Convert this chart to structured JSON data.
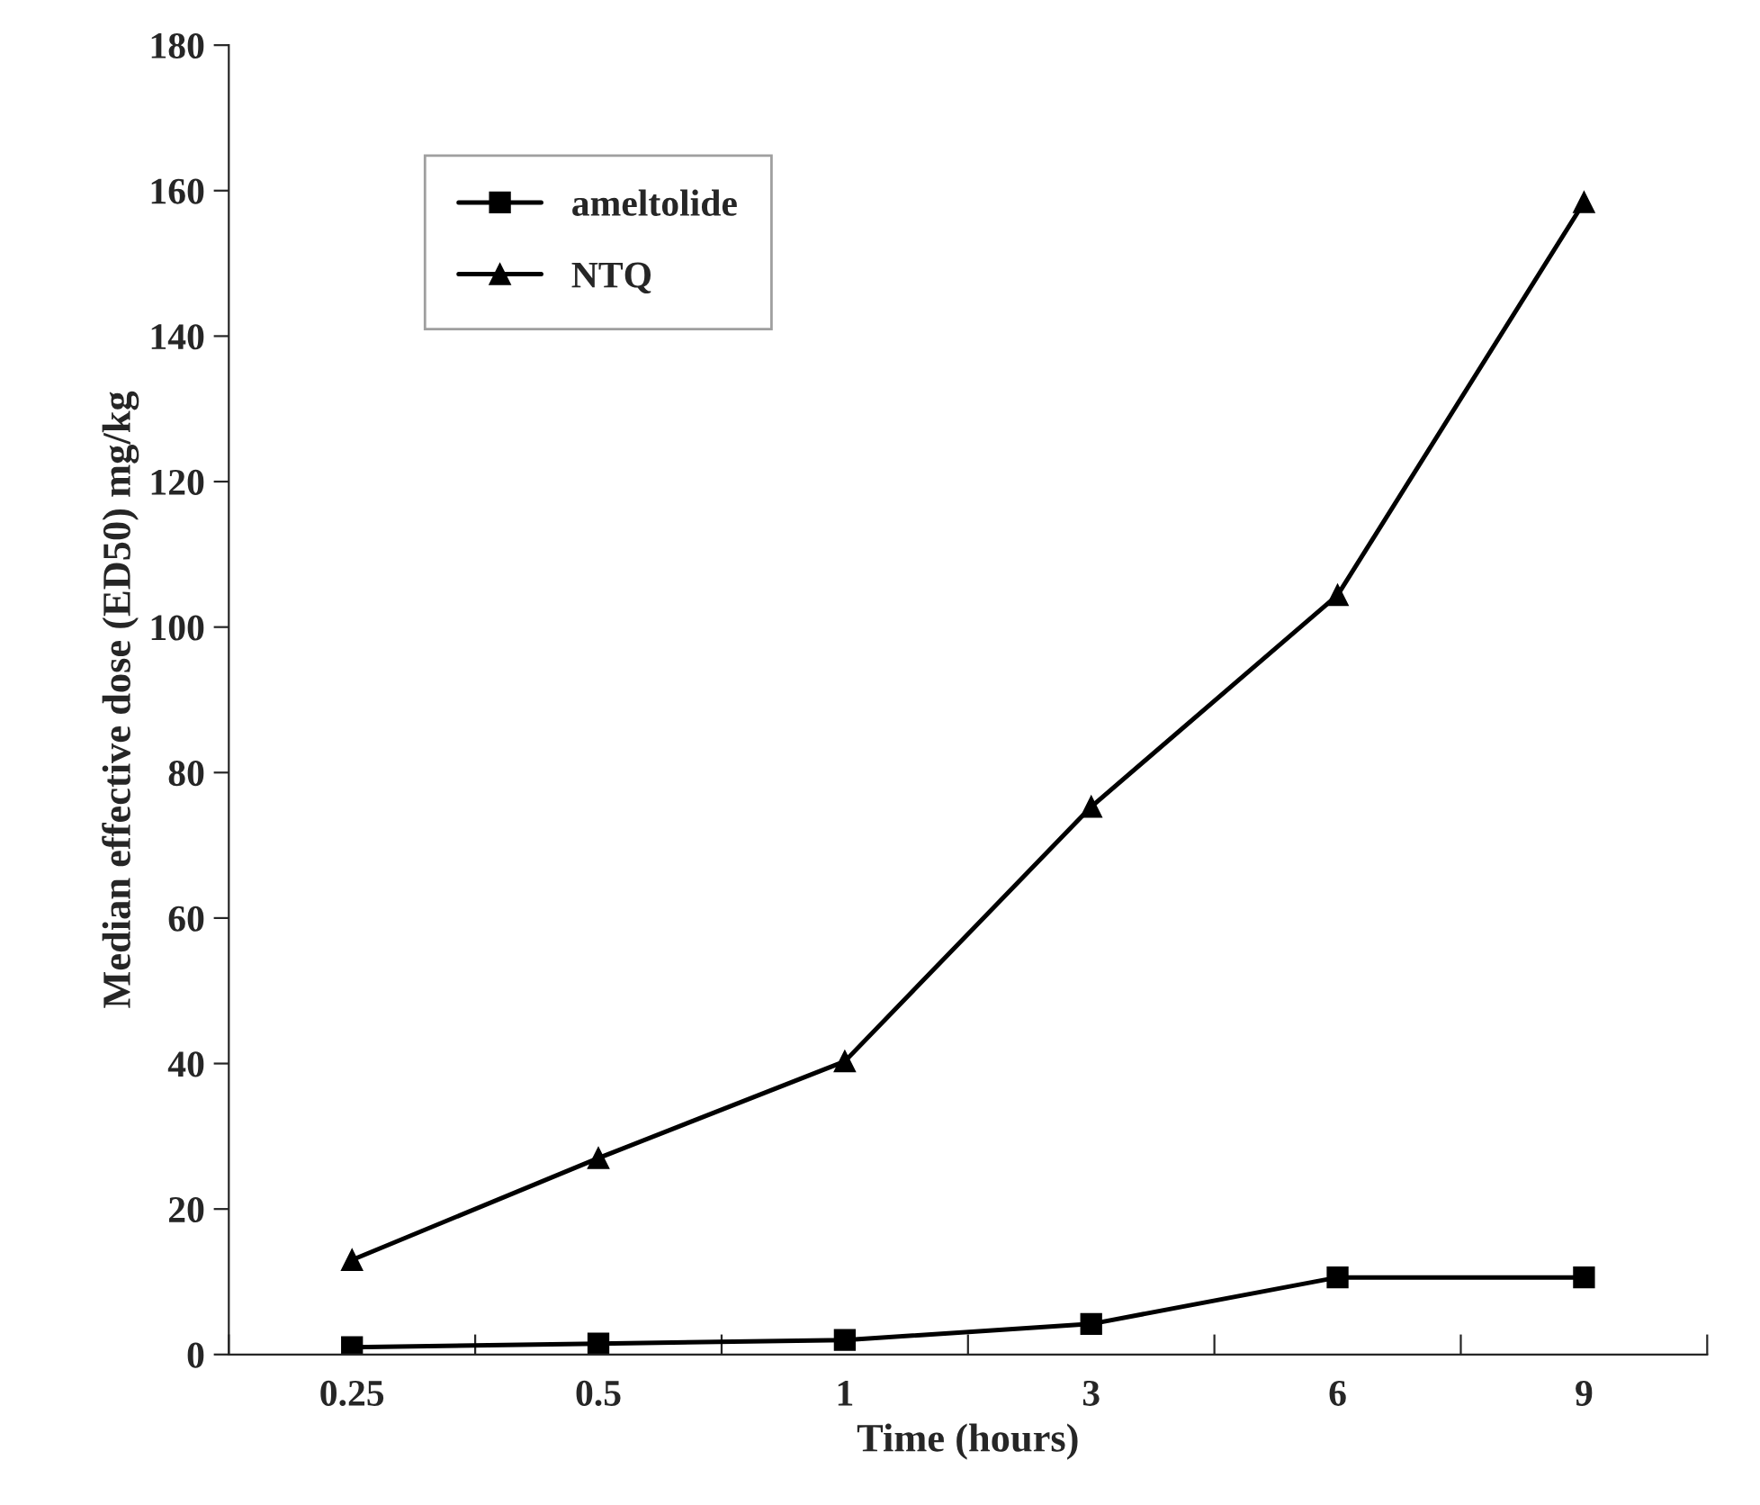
{
  "chart_data": {
    "type": "line",
    "xlabel": "Time (hours)",
    "ylabel": "Median effective dose (ED50) mg/kg",
    "categories": [
      "0.25",
      "0.5",
      "1",
      "3",
      "6",
      "9"
    ],
    "series": [
      {
        "name": "ameltolide",
        "color": "#000000",
        "marker": "square",
        "values": [
          1,
          1.5,
          2,
          4.2,
          10.6,
          10.6
        ]
      },
      {
        "name": "NTQ",
        "color": "#000000",
        "marker": "triangle",
        "values": [
          13,
          27,
          40.3,
          75.3,
          104.4,
          158.4
        ]
      }
    ],
    "ylim": [
      0,
      180
    ],
    "yticks": [
      0,
      20,
      40,
      60,
      80,
      100,
      120,
      140,
      160,
      180
    ],
    "grid": false,
    "legend": "top left",
    "line_style": "solid"
  }
}
